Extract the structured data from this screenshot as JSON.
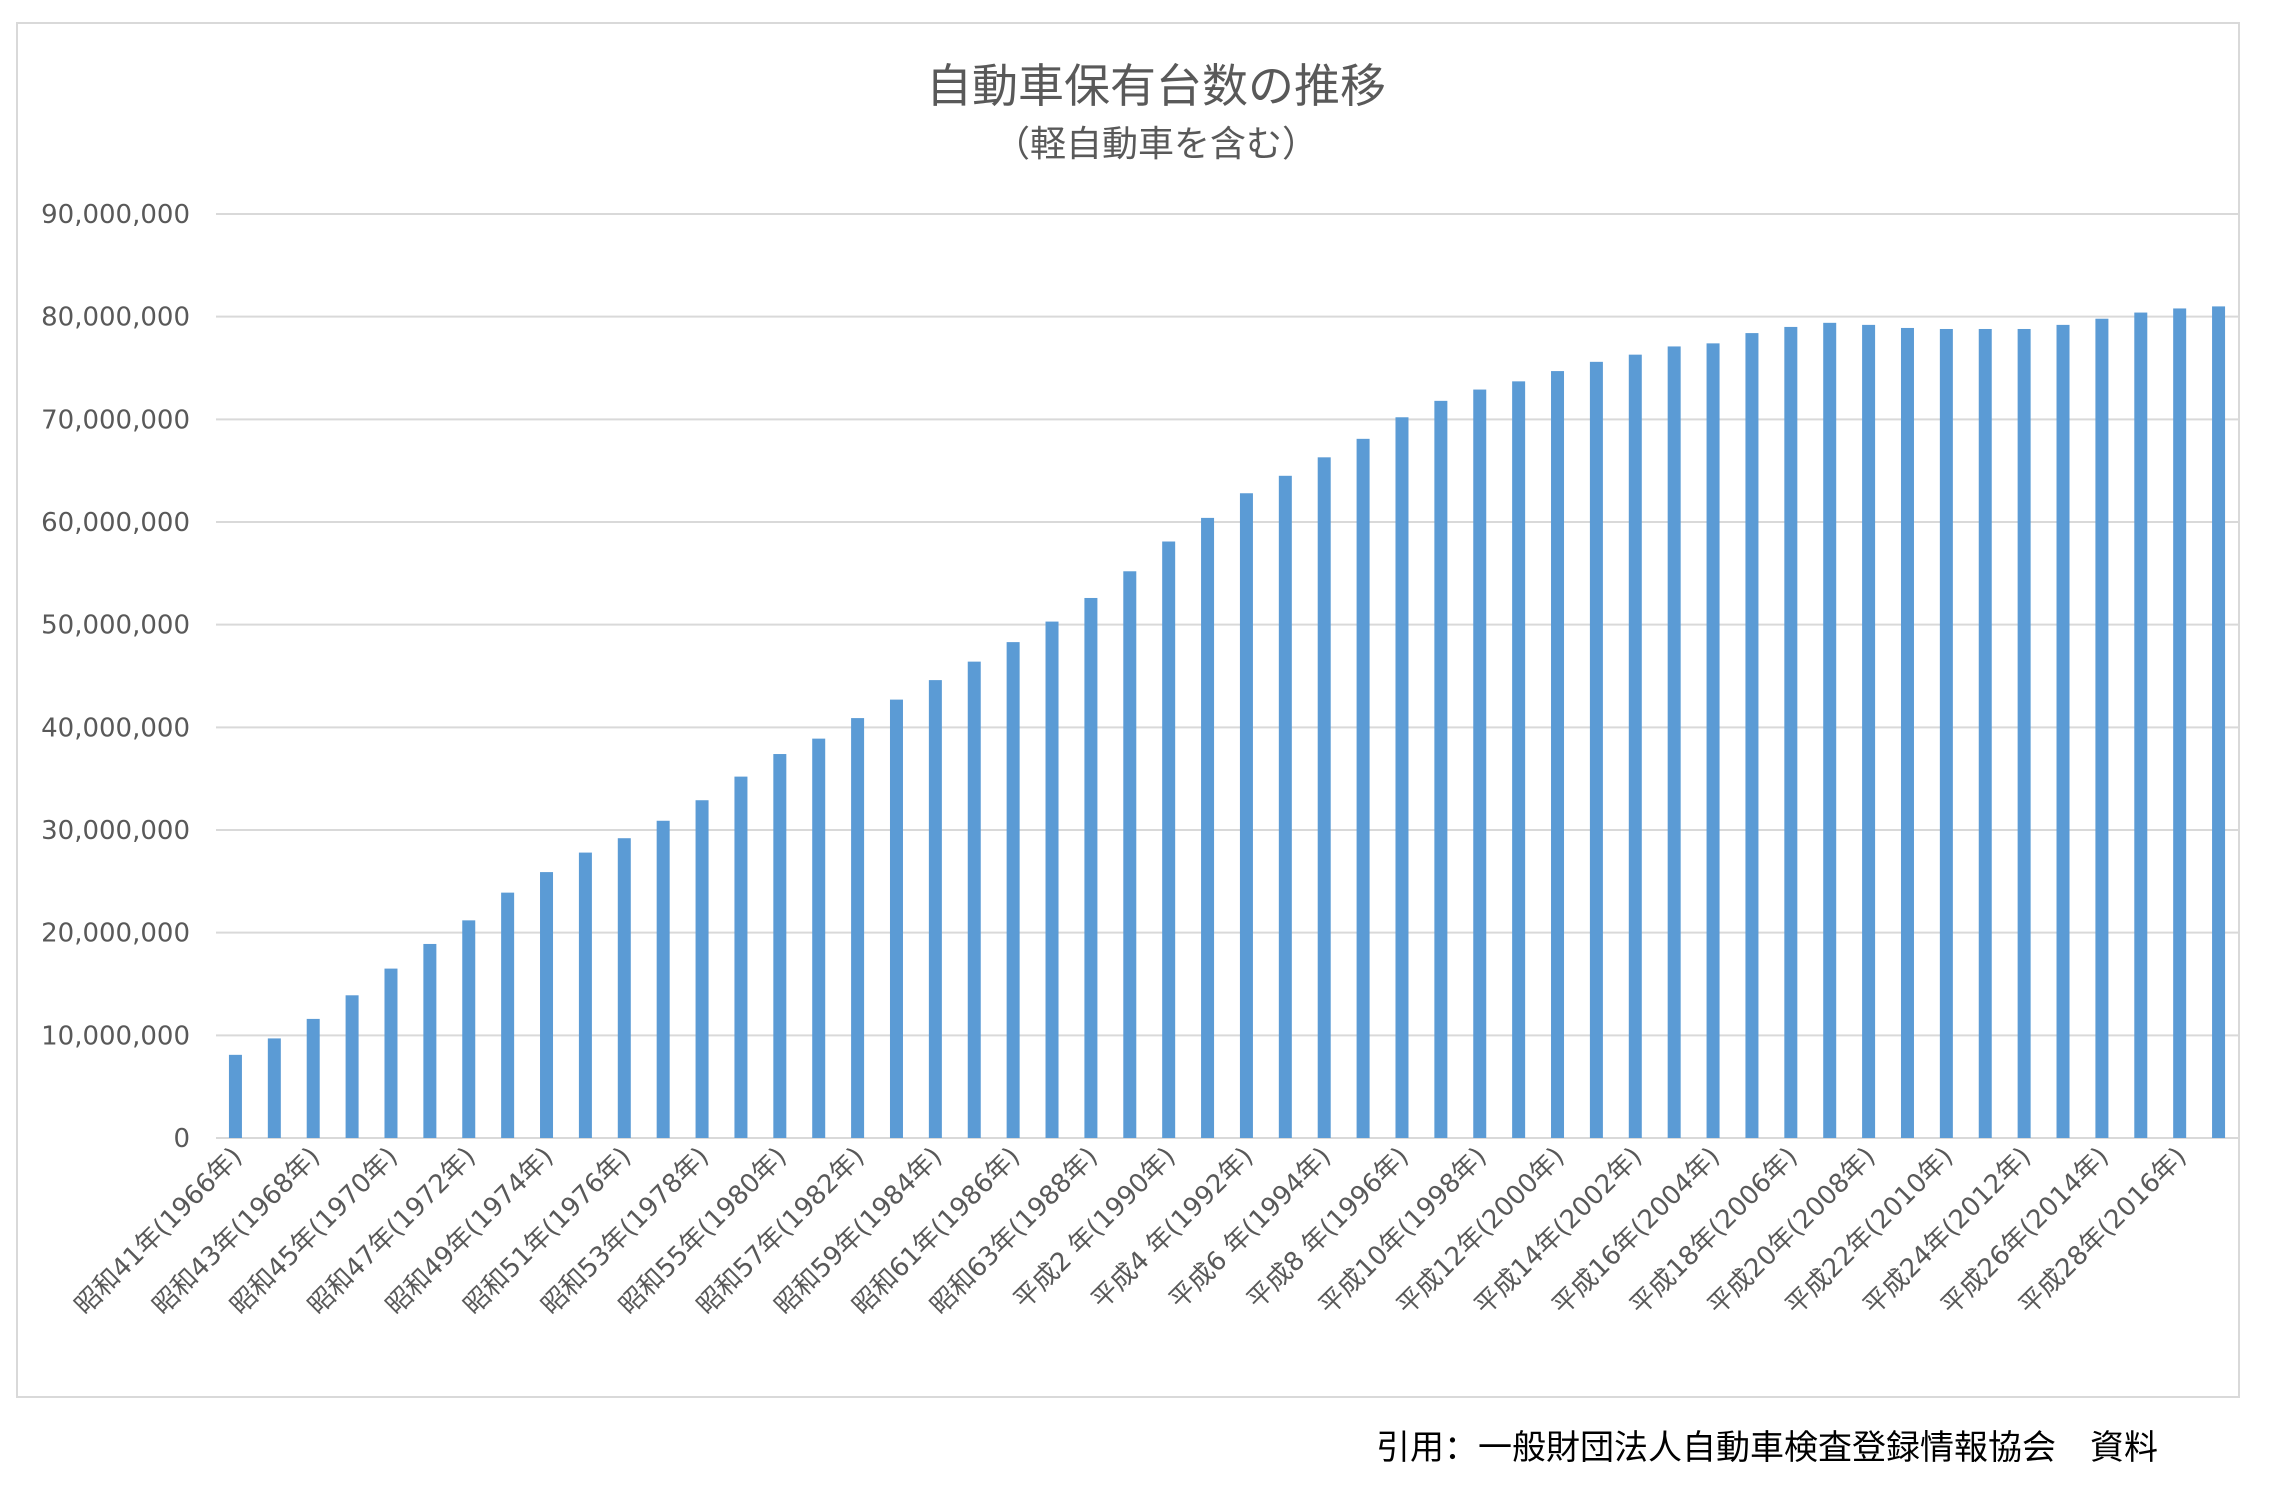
{
  "citation": "引用：一般財団法人自動車検査登録情報協会　資料",
  "chart_data": {
    "type": "bar",
    "title": "自動車保有台数の推移",
    "subtitle": "（軽自動車を含む）",
    "xlabel": "",
    "ylabel": "",
    "ylim": [
      0,
      90000000
    ],
    "yticks": [
      0,
      10000000,
      20000000,
      30000000,
      40000000,
      50000000,
      60000000,
      70000000,
      80000000,
      90000000
    ],
    "ytick_labels": [
      "0",
      "10,000,000",
      "20,000,000",
      "30,000,000",
      "40,000,000",
      "50,000,000",
      "60,000,000",
      "70,000,000",
      "80,000,000",
      "90,000,000"
    ],
    "grid": true,
    "legend": "none",
    "bar_color": "#5b9bd5",
    "categories": [
      "昭和41年(1966年)",
      "昭和42年(1967年)",
      "昭和43年(1968年)",
      "昭和44年(1969年)",
      "昭和45年(1970年)",
      "昭和46年(1971年)",
      "昭和47年(1972年)",
      "昭和48年(1973年)",
      "昭和49年(1974年)",
      "昭和50年(1975年)",
      "昭和51年(1976年)",
      "昭和52年(1977年)",
      "昭和53年(1978年)",
      "昭和54年(1979年)",
      "昭和55年(1980年)",
      "昭和56年(1981年)",
      "昭和57年(1982年)",
      "昭和58年(1983年)",
      "昭和59年(1984年)",
      "昭和60年(1985年)",
      "昭和61年(1986年)",
      "昭和62年(1987年)",
      "昭和63年(1988年)",
      "平成元年(1989年)",
      "平成2 年(1990年)",
      "平成3 年(1991年)",
      "平成4 年(1992年)",
      "平成5 年(1993年)",
      "平成6 年(1994年)",
      "平成7 年(1995年)",
      "平成8 年(1996年)",
      "平成9 年(1997年)",
      "平成10年(1998年)",
      "平成11年(1999年)",
      "平成12年(2000年)",
      "平成13年(2001年)",
      "平成14年(2002年)",
      "平成15年(2003年)",
      "平成16年(2004年)",
      "平成17年(2005年)",
      "平成18年(2006年)",
      "平成19年(2007年)",
      "平成20年(2008年)",
      "平成21年(2009年)",
      "平成22年(2010年)",
      "平成23年(2011年)",
      "平成24年(2012年)",
      "平成25年(2013年)",
      "平成26年(2014年)",
      "平成27年(2015年)",
      "平成28年(2016年)",
      "平成29年(2017年)"
    ],
    "x_tick_labels_shown": [
      "昭和41年(1966年)",
      "昭和43年(1968年)",
      "昭和45年(1970年)",
      "昭和47年(1972年)",
      "昭和49年(1974年)",
      "昭和51年(1976年)",
      "昭和53年(1978年)",
      "昭和55年(1980年)",
      "昭和57年(1982年)",
      "昭和59年(1984年)",
      "昭和61年(1986年)",
      "昭和63年(1988年)",
      "平成2 年(1990年)",
      "平成4 年(1992年)",
      "平成6 年(1994年)",
      "平成8 年(1996年)",
      "平成10年(1998年)",
      "平成12年(2000年)",
      "平成14年(2002年)",
      "平成16年(2004年)",
      "平成18年(2006年)",
      "平成20年(2008年)",
      "平成22年(2010年)",
      "平成24年(2012年)",
      "平成26年(2014年)",
      "平成28年(2016年)"
    ],
    "values": [
      8100000,
      9700000,
      11600000,
      13900000,
      16500000,
      18900000,
      21200000,
      23900000,
      25900000,
      27800000,
      29200000,
      30900000,
      32900000,
      35200000,
      37400000,
      38900000,
      40900000,
      42700000,
      44600000,
      46400000,
      48300000,
      50300000,
      52600000,
      55200000,
      58100000,
      60400000,
      62800000,
      64500000,
      66300000,
      68100000,
      70200000,
      71800000,
      72900000,
      73700000,
      74700000,
      75600000,
      76300000,
      77100000,
      77400000,
      78400000,
      79000000,
      79400000,
      79200000,
      78900000,
      78800000,
      78800000,
      78800000,
      79200000,
      79800000,
      80400000,
      80800000,
      81000000
    ]
  }
}
